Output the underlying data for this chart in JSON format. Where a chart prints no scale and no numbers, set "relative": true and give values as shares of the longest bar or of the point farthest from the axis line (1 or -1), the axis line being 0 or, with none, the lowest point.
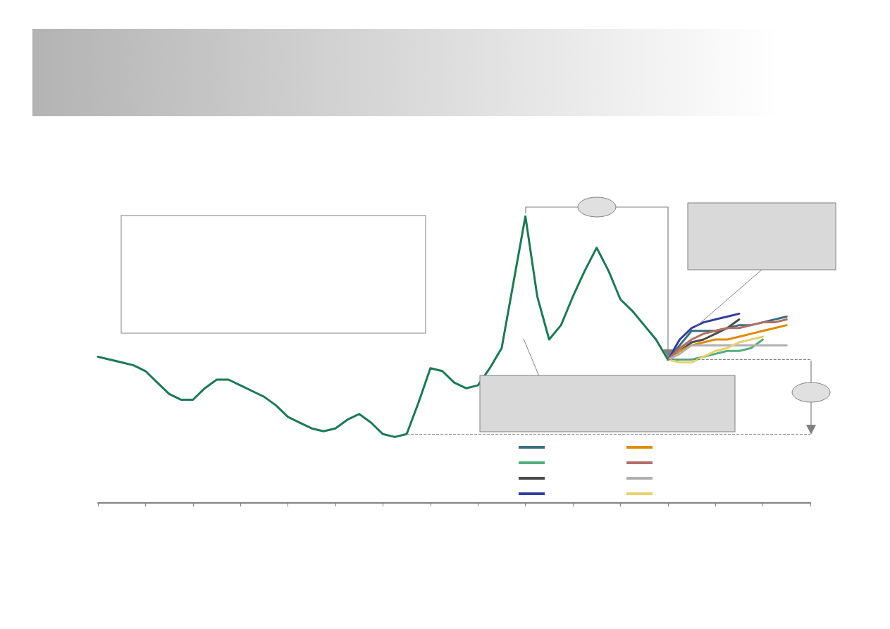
{
  "chart_data": {
    "type": "line",
    "relative": true,
    "grid": false,
    "marker": "none",
    "line_style": "solid",
    "categories": [
      null,
      null,
      null,
      null,
      null,
      null,
      null,
      null,
      null,
      null,
      null,
      null,
      null,
      null,
      null,
      null,
      null,
      null,
      null,
      null,
      null,
      null,
      null,
      null,
      null,
      null,
      null,
      null,
      null,
      null,
      null,
      null,
      null,
      null,
      null,
      null,
      null,
      null,
      null,
      null,
      null,
      null,
      null,
      null,
      null,
      null,
      null,
      null,
      null,
      null,
      null,
      null,
      null,
      null,
      null,
      null,
      null,
      null,
      null,
      null,
      null
    ],
    "series": [
      {
        "color": "#1a7a55",
        "values": [
          0.51,
          0.5,
          0.49,
          0.48,
          0.46,
          0.42,
          0.38,
          0.36,
          0.36,
          0.4,
          0.43,
          0.43,
          0.41,
          0.39,
          0.37,
          0.34,
          0.3,
          0.28,
          0.26,
          0.25,
          0.26,
          0.29,
          0.31,
          0.28,
          0.24,
          0.23,
          0.24,
          0.35,
          0.47,
          0.46,
          0.42,
          0.4,
          0.41,
          0.47,
          0.54,
          0.77,
          1,
          0.72,
          0.57,
          0.62,
          0.72,
          0.81,
          0.89,
          0.81,
          0.71,
          0.67,
          0.62,
          0.57,
          0.5,
          null,
          null,
          null,
          null,
          null,
          null,
          null,
          null,
          null,
          null,
          null,
          null
        ]
      },
      {
        "color": "#3a6f80",
        "values": [
          null,
          null,
          null,
          null,
          null,
          null,
          null,
          null,
          null,
          null,
          null,
          null,
          null,
          null,
          null,
          null,
          null,
          null,
          null,
          null,
          null,
          null,
          null,
          null,
          null,
          null,
          null,
          null,
          null,
          null,
          null,
          null,
          null,
          null,
          null,
          null,
          null,
          null,
          null,
          null,
          null,
          null,
          null,
          null,
          null,
          null,
          null,
          null,
          0.5,
          0.55,
          0.6,
          0.6,
          0.6,
          0.61,
          0.62,
          0.62,
          0.63,
          0.64,
          0.65,
          null,
          null
        ]
      },
      {
        "color": "#55ae7e",
        "values": [
          null,
          null,
          null,
          null,
          null,
          null,
          null,
          null,
          null,
          null,
          null,
          null,
          null,
          null,
          null,
          null,
          null,
          null,
          null,
          null,
          null,
          null,
          null,
          null,
          null,
          null,
          null,
          null,
          null,
          null,
          null,
          null,
          null,
          null,
          null,
          null,
          null,
          null,
          null,
          null,
          null,
          null,
          null,
          null,
          null,
          null,
          null,
          null,
          0.5,
          0.5,
          0.5,
          0.51,
          0.52,
          0.53,
          0.53,
          0.54,
          0.57,
          null,
          null,
          null,
          null
        ]
      },
      {
        "color": "#4a4a4a",
        "values": [
          null,
          null,
          null,
          null,
          null,
          null,
          null,
          null,
          null,
          null,
          null,
          null,
          null,
          null,
          null,
          null,
          null,
          null,
          null,
          null,
          null,
          null,
          null,
          null,
          null,
          null,
          null,
          null,
          null,
          null,
          null,
          null,
          null,
          null,
          null,
          null,
          null,
          null,
          null,
          null,
          null,
          null,
          null,
          null,
          null,
          null,
          null,
          null,
          0.5,
          0.53,
          0.56,
          0.57,
          0.59,
          0.61,
          0.64,
          null,
          null,
          null,
          null,
          null,
          null
        ]
      },
      {
        "color": "#2f3e9e",
        "values": [
          null,
          null,
          null,
          null,
          null,
          null,
          null,
          null,
          null,
          null,
          null,
          null,
          null,
          null,
          null,
          null,
          null,
          null,
          null,
          null,
          null,
          null,
          null,
          null,
          null,
          null,
          null,
          null,
          null,
          null,
          null,
          null,
          null,
          null,
          null,
          null,
          null,
          null,
          null,
          null,
          null,
          null,
          null,
          null,
          null,
          null,
          null,
          null,
          0.5,
          0.57,
          0.61,
          0.63,
          0.64,
          0.65,
          0.66,
          null,
          null,
          null,
          null,
          null,
          null
        ]
      },
      {
        "color": "#e08a00",
        "values": [
          null,
          null,
          null,
          null,
          null,
          null,
          null,
          null,
          null,
          null,
          null,
          null,
          null,
          null,
          null,
          null,
          null,
          null,
          null,
          null,
          null,
          null,
          null,
          null,
          null,
          null,
          null,
          null,
          null,
          null,
          null,
          null,
          null,
          null,
          null,
          null,
          null,
          null,
          null,
          null,
          null,
          null,
          null,
          null,
          null,
          null,
          null,
          null,
          0.5,
          0.53,
          0.55,
          0.56,
          0.57,
          0.57,
          0.58,
          0.59,
          0.6,
          0.61,
          0.62,
          null,
          null
        ]
      },
      {
        "color": "#b36e66",
        "values": [
          null,
          null,
          null,
          null,
          null,
          null,
          null,
          null,
          null,
          null,
          null,
          null,
          null,
          null,
          null,
          null,
          null,
          null,
          null,
          null,
          null,
          null,
          null,
          null,
          null,
          null,
          null,
          null,
          null,
          null,
          null,
          null,
          null,
          null,
          null,
          null,
          null,
          null,
          null,
          null,
          null,
          null,
          null,
          null,
          null,
          null,
          null,
          null,
          0.5,
          0.54,
          0.57,
          0.59,
          0.6,
          0.61,
          0.61,
          0.62,
          0.63,
          0.63,
          0.64,
          null,
          null
        ]
      },
      {
        "color": "#b0b0b0",
        "values": [
          null,
          null,
          null,
          null,
          null,
          null,
          null,
          null,
          null,
          null,
          null,
          null,
          null,
          null,
          null,
          null,
          null,
          null,
          null,
          null,
          null,
          null,
          null,
          null,
          null,
          null,
          null,
          null,
          null,
          null,
          null,
          null,
          null,
          null,
          null,
          null,
          null,
          null,
          null,
          null,
          null,
          null,
          null,
          null,
          null,
          null,
          null,
          null,
          0.5,
          0.52,
          0.55,
          0.55,
          0.55,
          0.55,
          0.55,
          0.55,
          0.55,
          0.55,
          0.55,
          null,
          null
        ]
      },
      {
        "color": "#e8d070",
        "values": [
          null,
          null,
          null,
          null,
          null,
          null,
          null,
          null,
          null,
          null,
          null,
          null,
          null,
          null,
          null,
          null,
          null,
          null,
          null,
          null,
          null,
          null,
          null,
          null,
          null,
          null,
          null,
          null,
          null,
          null,
          null,
          null,
          null,
          null,
          null,
          null,
          null,
          null,
          null,
          null,
          null,
          null,
          null,
          null,
          null,
          null,
          null,
          null,
          0.5,
          0.49,
          0.49,
          0.51,
          0.53,
          0.54,
          0.56,
          0.57,
          0.58,
          null,
          null,
          null,
          null
        ]
      }
    ],
    "ref_lines": [
      {
        "axis": "y",
        "value": 0.5,
        "color": "#808080",
        "line_style": "dashed"
      },
      {
        "axis": "y",
        "value": 0.24,
        "color": "#808080",
        "line_style": "dashed"
      }
    ]
  }
}
